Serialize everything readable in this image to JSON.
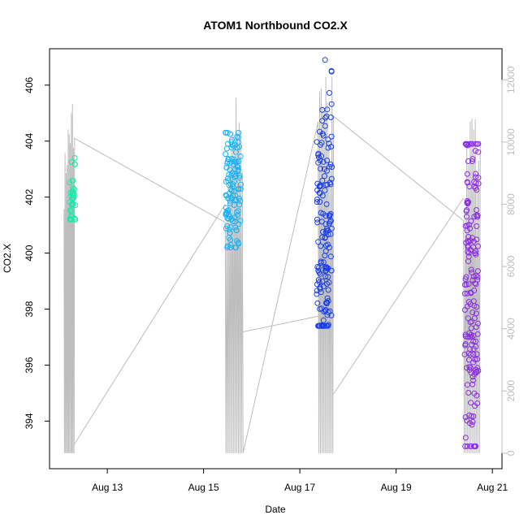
{
  "chart_data": {
    "type": "scatter",
    "title": "ATOM1 Northbound CO2.X",
    "xlabel": "Date",
    "ylabel": "CO2.X",
    "x_ticks": [
      {
        "label": "Aug 13",
        "day": 13
      },
      {
        "label": "Aug 15",
        "day": 15
      },
      {
        "label": "Aug 17",
        "day": 17
      },
      {
        "label": "Aug 19",
        "day": 19
      },
      {
        "label": "Aug 21",
        "day": 21
      }
    ],
    "x_range_days": [
      11.8,
      21.2
    ],
    "y_ticks": [
      394,
      396,
      398,
      400,
      402,
      404,
      406
    ],
    "ylim": [
      392.3,
      407.3
    ],
    "y2_ticks": [
      0,
      2000,
      4000,
      6000,
      8000,
      10000,
      12000
    ],
    "y2lim": [
      -500,
      13000
    ],
    "grid": false,
    "colors": {
      "secondary_line": "#bdbdbd",
      "cluster_1": "#1de9a8",
      "cluster_2": "#1ab2f0",
      "cluster_3": "#1a3fe8",
      "cluster_4": "#8a2be2"
    },
    "scatter_clusters": [
      {
        "x_range": [
          12.22,
          12.34
        ],
        "y_center": 401.7,
        "y_spread": 0.7,
        "y_min": 401.2,
        "y_max": 403.6,
        "count": 45,
        "color": "cluster_1"
      },
      {
        "x_range": [
          15.45,
          15.78
        ],
        "y_center": 402.1,
        "y_spread": 1.1,
        "y_min": 400.2,
        "y_max": 404.3,
        "count": 120,
        "color": "cluster_2"
      },
      {
        "x_range": [
          17.35,
          17.67
        ],
        "y_center": 400.5,
        "y_spread": 2.6,
        "y_min": 397.4,
        "y_max": 406.9,
        "count": 160,
        "color": "cluster_3"
      },
      {
        "x_range": [
          20.42,
          20.72
        ],
        "y_center": 398.5,
        "y_spread": 3.0,
        "y_min": 393.1,
        "y_max": 403.9,
        "count": 170,
        "color": "cluster_4"
      }
    ],
    "secondary_series": {
      "axis": "right",
      "bursts": [
        {
          "x_range": [
            12.1,
            12.32
          ],
          "peaks": [
            9800,
            10500,
            11000,
            11300,
            11500,
            11800,
            10800
          ]
        },
        {
          "x_range": [
            15.45,
            15.82
          ],
          "peaks": [
            8000,
            9500,
            10500,
            11000,
            12200,
            11500,
            10800,
            11000
          ]
        },
        {
          "x_range": [
            17.38,
            17.7
          ],
          "peaks": [
            11800,
            12500,
            12000,
            12300,
            11500,
            10500,
            12500
          ]
        },
        {
          "x_range": [
            20.4,
            20.75
          ],
          "peaks": [
            9000,
            11200,
            10800,
            11800,
            11000,
            10500,
            11000
          ]
        }
      ],
      "connectors": [
        {
          "from": [
            12.32,
            300
          ],
          "to": [
            15.45,
            8000
          ]
        },
        {
          "from": [
            15.82,
            3900
          ],
          "to": [
            17.38,
            4400
          ]
        },
        {
          "from": [
            17.7,
            1900
          ],
          "to": [
            20.4,
            8200
          ]
        }
      ]
    }
  }
}
